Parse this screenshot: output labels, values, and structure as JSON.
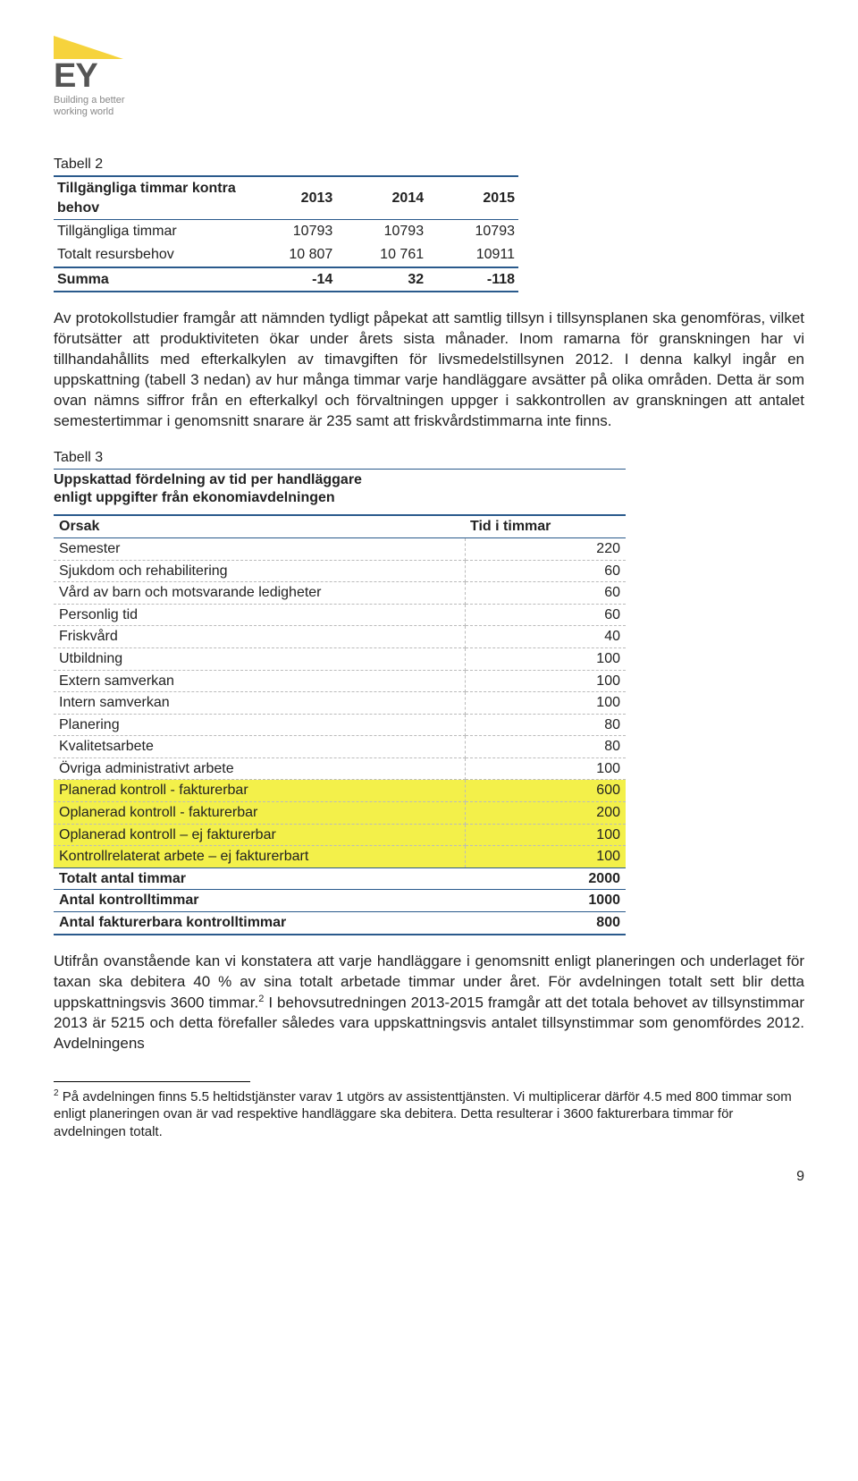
{
  "logo": {
    "text": "EY",
    "tagline1": "Building a better",
    "tagline2": "working world"
  },
  "table2": {
    "caption": "Tabell 2",
    "header_label": "Tillgängliga timmar kontra behov",
    "years": [
      "2013",
      "2014",
      "2015"
    ],
    "rows": [
      {
        "label": "Tillgängliga timmar",
        "v": [
          "10793",
          "10793",
          "10793"
        ]
      },
      {
        "label": "Totalt resursbehov",
        "v": [
          "10 807",
          "10 761",
          "10911"
        ]
      }
    ],
    "summa_label": "Summa",
    "summa_v": [
      "-14",
      "32",
      "-118"
    ]
  },
  "para1": "Av protokollstudier framgår att nämnden tydligt påpekat att samtlig tillsyn i tillsynsplanen ska genomföras, vilket förutsätter att produktiviteten ökar under årets sista månader. Inom ramarna för granskningen har vi tillhandahållits med efterkalkylen av timavgiften för livsmedelstillsynen 2012. I denna kalkyl ingår en uppskattning (tabell 3 nedan) av hur många timmar varje handläggare avsätter på olika områden. Detta är som ovan nämns siffror från en efterkalkyl och förvaltningen uppger i sakkontrollen av granskningen att antalet semestertimmar i genomsnitt snarare är 235 samt att friskvårdstimmarna inte finns.",
  "table3": {
    "caption": "Tabell 3",
    "title1": "Uppskattad fördelning av tid per handläggare",
    "title2": "enligt uppgifter från ekonomiavdelningen",
    "col_cause": "Orsak",
    "col_time": "Tid i timmar",
    "rows": [
      {
        "label": "Semester",
        "v": "220",
        "hl": false
      },
      {
        "label": "Sjukdom och rehabilitering",
        "v": "60",
        "hl": false
      },
      {
        "label": "Vård av barn och motsvarande ledigheter",
        "v": "60",
        "hl": false
      },
      {
        "label": "Personlig tid",
        "v": "60",
        "hl": false
      },
      {
        "label": "Friskvård",
        "v": "40",
        "hl": false
      },
      {
        "label": "Utbildning",
        "v": "100",
        "hl": false
      },
      {
        "label": "Extern samverkan",
        "v": "100",
        "hl": false
      },
      {
        "label": "Intern samverkan",
        "v": "100",
        "hl": false
      },
      {
        "label": "Planering",
        "v": "80",
        "hl": false
      },
      {
        "label": "Kvalitetsarbete",
        "v": "80",
        "hl": false
      },
      {
        "label": "Övriga administrativt arbete",
        "v": "100",
        "hl": false
      },
      {
        "label": "Planerad kontroll - fakturerbar",
        "v": "600",
        "hl": true
      },
      {
        "label": "Oplanerad kontroll - fakturerbar",
        "v": "200",
        "hl": true
      },
      {
        "label": "Oplanerad kontroll – ej fakturerbar",
        "v": "100",
        "hl": true
      },
      {
        "label": "Kontrollrelaterat arbete – ej fakturerbart",
        "v": "100",
        "hl": true
      }
    ],
    "total_label": "Totalt antal timmar",
    "total_v": "2000",
    "sub1_label": "Antal kontrolltimmar",
    "sub1_v": "1000",
    "sub2_label": "Antal fakturerbara kontrolltimmar",
    "sub2_v": "800"
  },
  "para2_a": "Utifrån ovanstående kan vi konstatera att varje handläggare i genomsnitt enligt planeringen och underlaget för taxan ska debitera 40 % av sina totalt arbetade timmar under året. För avdelningen totalt sett blir detta uppskattningsvis 3600 timmar.",
  "para2_fn": "2",
  "para2_b": " I behovsutredningen 2013-2015 framgår att det totala behovet av tillsynstimmar 2013 är 5215 och detta förefaller således vara uppskattningsvis antalet tillsynstimmar som genomfördes 2012. Avdelningens",
  "footnote_mark": "2",
  "footnote_text": " På avdelningen finns 5.5 heltidstjänster varav 1 utgörs av assistenttjänsten. Vi multiplicerar därför 4.5 med 800 timmar som enligt planeringen ovan är vad respektive handläggare ska debitera. Detta resulterar i 3600 fakturerbara timmar för avdelningen totalt.",
  "page_number": "9"
}
